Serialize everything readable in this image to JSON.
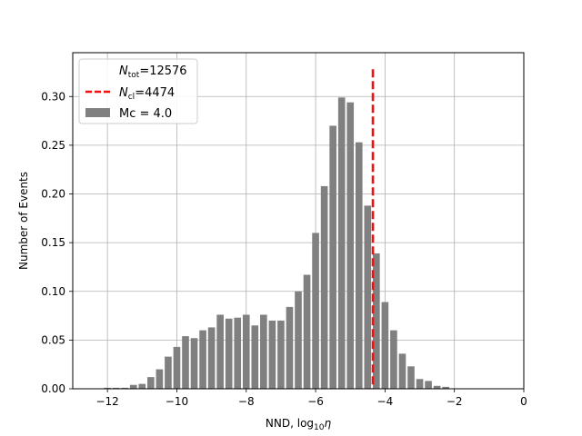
{
  "chart_data": {
    "type": "bar",
    "xlabel": "NND, log₁₀η",
    "ylabel": "Number of Events",
    "xlim": [
      -13,
      0
    ],
    "ylim": [
      0,
      0.345
    ],
    "grid": true,
    "x_ticks": [
      -12,
      -10,
      -8,
      -6,
      -4,
      -2,
      0
    ],
    "x_tick_labels": [
      "−12",
      "−10",
      "−8",
      "−6",
      "−4",
      "−2",
      "0"
    ],
    "y_ticks": [
      0.0,
      0.05,
      0.1,
      0.15,
      0.2,
      0.25,
      0.3
    ],
    "y_tick_labels": [
      "0.00",
      "0.05",
      "0.10",
      "0.15",
      "0.20",
      "0.25",
      "0.30"
    ],
    "bin_width": 0.25,
    "bar_width": 0.2,
    "bar_color": "#808080",
    "x": [
      -12.0,
      -11.75,
      -11.5,
      -11.25,
      -11.0,
      -10.75,
      -10.5,
      -10.25,
      -10.0,
      -9.75,
      -9.5,
      -9.25,
      -9.0,
      -8.75,
      -8.5,
      -8.25,
      -8.0,
      -7.75,
      -7.5,
      -7.25,
      -7.0,
      -6.75,
      -6.5,
      -6.25,
      -6.0,
      -5.75,
      -5.5,
      -5.25,
      -5.0,
      -4.75,
      -4.5,
      -4.25,
      -4.0,
      -3.75,
      -3.5,
      -3.25,
      -3.0,
      -2.75,
      -2.5,
      -2.25,
      -2.0,
      -1.75,
      -1.5,
      -1.25,
      -1.0,
      -0.75,
      -0.5,
      -0.25
    ],
    "values": [
      0.001,
      0.001,
      0.001,
      0.004,
      0.005,
      0.012,
      0.02,
      0.033,
      0.043,
      0.054,
      0.052,
      0.06,
      0.063,
      0.076,
      0.072,
      0.073,
      0.076,
      0.065,
      0.076,
      0.07,
      0.07,
      0.084,
      0.1,
      0.117,
      0.16,
      0.208,
      0.27,
      0.299,
      0.294,
      0.253,
      0.188,
      0.139,
      0.089,
      0.06,
      0.036,
      0.023,
      0.01,
      0.008,
      0.003,
      0.002,
      0,
      0,
      0,
      0,
      0,
      0,
      0,
      0
    ],
    "vline": {
      "x": -4.35,
      "y_top": 0.328,
      "color": "#ee1111",
      "style": "dashed"
    },
    "legend": {
      "placement": "upper-left",
      "entries": [
        {
          "kind": "none",
          "base": "N",
          "sub": "tot",
          "rest": "=12576"
        },
        {
          "kind": "line",
          "base": "N",
          "sub": "cl",
          "rest": "=4474",
          "color": "#ee1111"
        },
        {
          "kind": "patch",
          "label": "Mc = 4.0",
          "color": "#808080"
        }
      ]
    }
  }
}
